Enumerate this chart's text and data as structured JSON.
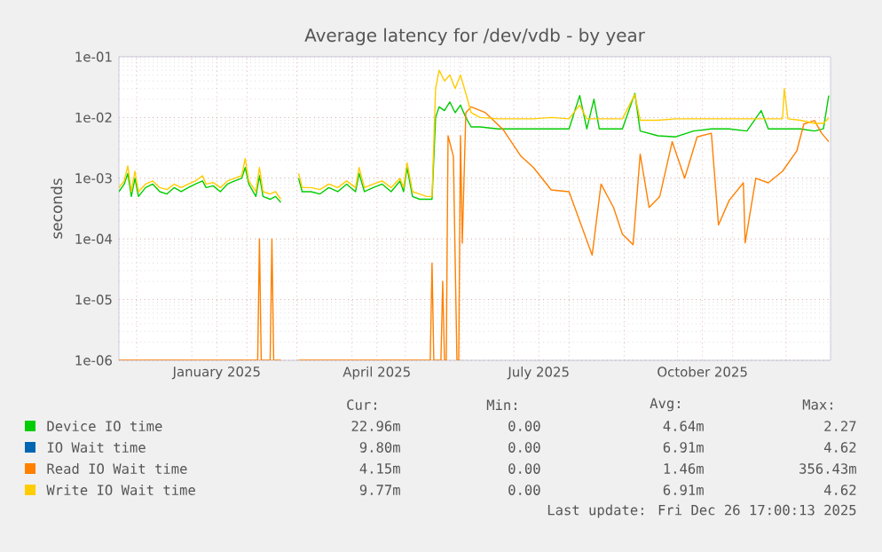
{
  "chart_data": {
    "type": "line",
    "title": "Average latency for /dev/vdb - by year",
    "ylabel": "seconds",
    "log": "y",
    "grid": true,
    "legend": "bottom",
    "xlim": [
      "2024-11-21",
      "2025-12-26"
    ],
    "ylim": [
      1e-06,
      0.1
    ],
    "xticks": [
      {
        "value": "2024-12-01",
        "label": null
      },
      {
        "value": "2025-01-01",
        "label": null
      },
      {
        "value": "2025-01-15",
        "label": "January 2025"
      },
      {
        "value": "2025-02-01",
        "label": null
      },
      {
        "value": "2025-03-01",
        "label": null
      },
      {
        "value": "2025-04-01",
        "label": null
      },
      {
        "value": "2025-04-15",
        "label": "April 2025"
      },
      {
        "value": "2025-05-01",
        "label": null
      },
      {
        "value": "2025-06-01",
        "label": null
      },
      {
        "value": "2025-07-01",
        "label": null
      },
      {
        "value": "2025-07-15",
        "label": "July 2025"
      },
      {
        "value": "2025-08-01",
        "label": null
      },
      {
        "value": "2025-09-01",
        "label": null
      },
      {
        "value": "2025-10-01",
        "label": null
      },
      {
        "value": "2025-10-15",
        "label": "October 2025"
      },
      {
        "value": "2025-11-01",
        "label": null
      },
      {
        "value": "2025-12-01",
        "label": null
      }
    ],
    "yticks": [
      {
        "value": 1e-06,
        "label": "1e-06"
      },
      {
        "value": 1e-05,
        "label": "1e-05"
      },
      {
        "value": 0.0001,
        "label": "1e-04"
      },
      {
        "value": 0.001,
        "label": "1e-03"
      },
      {
        "value": 0.01,
        "label": "1e-02"
      },
      {
        "value": 0.1,
        "label": "1e-01"
      }
    ],
    "annotations": [
      "Cur:",
      "Min:",
      "Avg:",
      "Max:",
      "22.96m",
      "0.00",
      "4.64m",
      "2.27",
      "9.80m",
      "0.00",
      "6.91m",
      "4.62",
      "4.15m",
      "0.00",
      "1.46m",
      "356.43m",
      "9.77m",
      "0.00",
      "6.91m",
      "4.62",
      "Last update: Fri Dec 26 17:00:13 2025"
    ],
    "series": [
      {
        "name": "Device IO time",
        "color": "#00cc00",
        "x": [
          "2024-11-21",
          "2024-11-24",
          "2024-11-26",
          "2024-11-28",
          "2024-11-30",
          "2024-12-02",
          "2024-12-06",
          "2024-12-10",
          "2024-12-14",
          "2024-12-18",
          "2024-12-22",
          "2024-12-26",
          "2024-12-30",
          "2025-01-03",
          "2025-01-07",
          "2025-01-09",
          "2025-01-13",
          "2025-01-17",
          "2025-01-21",
          "2025-01-25",
          "2025-01-29",
          "2025-01-31",
          "2025-02-02",
          "2025-02-06",
          "2025-02-08",
          "2025-02-10",
          "2025-02-14",
          "2025-02-17",
          "2025-02-20",
          "2025-02-25",
          "2025-03-02",
          "2025-03-04",
          "2025-03-09",
          "2025-03-14",
          "2025-03-19",
          "2025-03-24",
          "2025-03-29",
          "2025-04-03",
          "2025-04-05",
          "2025-04-08",
          "2025-04-13",
          "2025-04-18",
          "2025-04-23",
          "2025-04-28",
          "2025-04-30",
          "2025-05-02",
          "2025-05-05",
          "2025-05-09",
          "2025-05-13",
          "2025-05-16",
          "2025-05-18",
          "2025-05-20",
          "2025-05-23",
          "2025-05-26",
          "2025-05-29",
          "2025-06-01",
          "2025-06-04",
          "2025-06-07",
          "2025-06-12",
          "2025-06-22",
          "2025-07-02",
          "2025-07-12",
          "2025-07-22",
          "2025-08-01",
          "2025-08-07",
          "2025-08-11",
          "2025-08-15",
          "2025-08-18",
          "2025-08-31",
          "2025-09-07",
          "2025-09-10",
          "2025-09-20",
          "2025-09-30",
          "2025-10-10",
          "2025-10-20",
          "2025-10-30",
          "2025-11-09",
          "2025-11-17",
          "2025-11-21",
          "2025-11-29",
          "2025-12-09",
          "2025-12-17",
          "2025-12-22",
          "2025-12-25"
        ],
        "values": [
          0.0006,
          0.0008,
          0.0012,
          0.0005,
          0.001,
          0.0005,
          0.0007,
          0.0008,
          0.0006,
          0.00055,
          0.0007,
          0.0006,
          0.0007,
          0.0008,
          0.0009,
          0.0007,
          0.00075,
          0.0006,
          0.0008,
          0.0009,
          0.001,
          0.0015,
          0.0008,
          0.0005,
          0.0011,
          0.0005,
          0.00045,
          0.0005,
          0.0004,
          null,
          0.001,
          0.0006,
          0.0006,
          0.00055,
          0.0007,
          0.0006,
          0.0008,
          0.0006,
          0.0012,
          0.0006,
          0.0007,
          0.0008,
          0.0006,
          0.0009,
          0.0006,
          0.0015,
          0.0005,
          0.00045,
          0.00045,
          0.00045,
          0.01,
          0.015,
          0.013,
          0.018,
          0.012,
          0.016,
          0.01,
          0.007,
          0.007,
          0.0065,
          0.0065,
          0.0065,
          0.0065,
          0.0065,
          0.023,
          0.0065,
          0.02,
          0.0065,
          0.0065,
          0.025,
          0.006,
          0.005,
          0.0048,
          0.006,
          0.0065,
          0.0065,
          0.006,
          0.013,
          0.0065,
          0.0065,
          0.0065,
          0.006,
          0.0065,
          0.023
        ]
      },
      {
        "name": "IO Wait time",
        "color": "#0066b3"
      },
      {
        "name": "Read IO Wait time",
        "color": "#ff8000",
        "x": [
          "2024-11-21",
          "2025-02-07",
          "2025-02-08",
          "2025-02-09",
          "2025-02-14",
          "2025-02-15",
          "2025-02-16",
          "2025-02-20",
          "2025-02-25",
          "2025-03-02",
          "2025-05-15",
          "2025-05-16",
          "2025-05-17",
          "2025-05-21",
          "2025-05-22",
          "2025-05-23",
          "2025-05-24",
          "2025-05-25",
          "2025-05-28",
          "2025-05-30",
          "2025-05-31",
          "2025-06-01",
          "2025-06-02",
          "2025-06-04",
          "2025-06-07",
          "2025-06-15",
          "2025-06-25",
          "2025-07-05",
          "2025-07-12",
          "2025-07-22",
          "2025-08-01",
          "2025-08-14",
          "2025-08-19",
          "2025-08-26",
          "2025-08-31",
          "2025-09-06",
          "2025-09-10",
          "2025-09-15",
          "2025-09-21",
          "2025-09-28",
          "2025-10-05",
          "2025-10-12",
          "2025-10-20",
          "2025-10-24",
          "2025-10-30",
          "2025-11-07",
          "2025-11-08",
          "2025-11-14",
          "2025-11-21",
          "2025-11-29",
          "2025-12-07",
          "2025-12-11",
          "2025-12-17",
          "2025-12-21",
          "2025-12-25"
        ],
        "values": [
          1e-06,
          1e-06,
          0.0001,
          1e-06,
          1e-06,
          0.0001,
          1e-06,
          1e-06,
          null,
          1e-06,
          1e-06,
          4e-05,
          1e-06,
          1e-06,
          2e-05,
          1e-06,
          1e-06,
          0.005,
          0.0023,
          1e-06,
          1e-06,
          0.005,
          8.5e-05,
          0.012,
          0.015,
          0.012,
          0.0063,
          0.0023,
          0.0015,
          0.00064,
          0.0006,
          5.4e-05,
          0.0008,
          0.00033,
          0.00012,
          8e-05,
          0.0025,
          0.00033,
          0.0005,
          0.004,
          0.001,
          0.0048,
          0.0055,
          0.00017,
          0.00043,
          0.00084,
          8.6e-05,
          0.001,
          0.00084,
          0.0013,
          0.0028,
          0.0078,
          0.0089,
          0.0055,
          0.004
        ]
      },
      {
        "name": "Write IO Wait time",
        "color": "#ffcc00",
        "x": [
          "2024-11-21",
          "2024-11-24",
          "2024-11-26",
          "2024-11-28",
          "2024-11-30",
          "2024-12-02",
          "2024-12-06",
          "2024-12-10",
          "2024-12-14",
          "2024-12-18",
          "2024-12-22",
          "2024-12-26",
          "2024-12-30",
          "2025-01-03",
          "2025-01-07",
          "2025-01-09",
          "2025-01-13",
          "2025-01-17",
          "2025-01-21",
          "2025-01-25",
          "2025-01-29",
          "2025-01-31",
          "2025-02-02",
          "2025-02-06",
          "2025-02-08",
          "2025-02-10",
          "2025-02-14",
          "2025-02-17",
          "2025-02-20",
          "2025-02-25",
          "2025-03-02",
          "2025-03-04",
          "2025-03-09",
          "2025-03-14",
          "2025-03-19",
          "2025-03-24",
          "2025-03-29",
          "2025-04-03",
          "2025-04-05",
          "2025-04-08",
          "2025-04-13",
          "2025-04-18",
          "2025-04-23",
          "2025-04-28",
          "2025-04-30",
          "2025-05-02",
          "2025-05-05",
          "2025-05-09",
          "2025-05-13",
          "2025-05-16",
          "2025-05-18",
          "2025-05-20",
          "2025-05-23",
          "2025-05-26",
          "2025-05-29",
          "2025-06-01",
          "2025-06-04",
          "2025-06-07",
          "2025-06-12",
          "2025-06-22",
          "2025-07-02",
          "2025-07-12",
          "2025-07-22",
          "2025-08-01",
          "2025-08-07",
          "2025-08-11",
          "2025-08-21",
          "2025-08-31",
          "2025-09-07",
          "2025-09-10",
          "2025-09-20",
          "2025-09-30",
          "2025-10-10",
          "2025-10-20",
          "2025-10-30",
          "2025-11-09",
          "2025-11-19",
          "2025-11-29",
          "2025-11-30",
          "2025-12-02",
          "2025-12-09",
          "2025-12-17",
          "2025-12-22",
          "2025-12-25"
        ],
        "values": [
          0.0007,
          0.0009,
          0.0016,
          0.0006,
          0.0013,
          0.0006,
          0.0008,
          0.0009,
          0.0007,
          0.00065,
          0.0008,
          0.0007,
          0.0008,
          0.0009,
          0.0011,
          0.0008,
          0.00085,
          0.0007,
          0.0009,
          0.001,
          0.0011,
          0.0021,
          0.0009,
          0.0006,
          0.0015,
          0.0006,
          0.00055,
          0.0006,
          0.00045,
          null,
          0.0012,
          0.0007,
          0.0007,
          0.00065,
          0.0008,
          0.0007,
          0.0009,
          0.0007,
          0.0015,
          0.0007,
          0.0008,
          0.0009,
          0.0007,
          0.001,
          0.0007,
          0.0018,
          0.0006,
          0.00055,
          0.0005,
          0.0005,
          0.03,
          0.06,
          0.04,
          0.05,
          0.03,
          0.05,
          0.025,
          0.012,
          0.01,
          0.0095,
          0.0095,
          0.0095,
          0.01,
          0.0095,
          0.016,
          0.0095,
          0.0095,
          0.0095,
          0.024,
          0.009,
          0.009,
          0.0095,
          0.0095,
          0.0095,
          0.0095,
          0.0095,
          0.0095,
          0.0095,
          0.03,
          0.0095,
          0.009,
          0.008,
          0.008,
          0.0098
        ]
      }
    ]
  }
}
